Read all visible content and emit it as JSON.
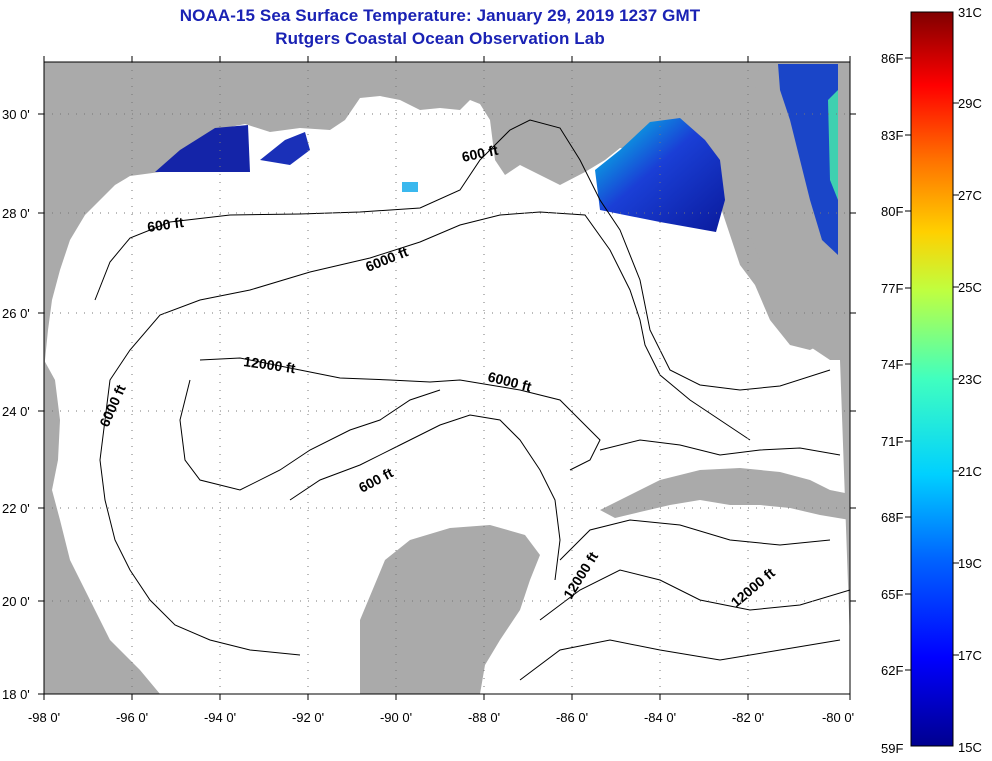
{
  "title": {
    "line1": "NOAA-15 Sea Surface Temperature:  January 29, 2019 1237 GMT",
    "line2": "Rutgers Coastal Ocean Observation Lab"
  },
  "axes": {
    "lat_labels": [
      "30 0'",
      "28 0'",
      "26 0'",
      "24 0'",
      "22 0'",
      "20 0'",
      "18 0'"
    ],
    "lon_labels": [
      "-98 0'",
      "-96 0'",
      "-94 0'",
      "-92 0'",
      "-90 0'",
      "-88 0'",
      "-86 0'",
      "-84 0'",
      "-82 0'",
      "-80 0'"
    ]
  },
  "contour_labels": [
    "600 ft",
    "600 ft",
    "6000 ft",
    "12000 ft",
    "6000 ft",
    "6000 ft",
    "600 ft",
    "12000 ft",
    "12000 ft"
  ],
  "colorbar": {
    "fahrenheit": [
      "86F",
      "83F",
      "80F",
      "77F",
      "74F",
      "71F",
      "68F",
      "65F",
      "62F",
      "59F"
    ],
    "celsius": [
      "31C",
      "29C",
      "27C",
      "25C",
      "23C",
      "21C",
      "19C",
      "17C",
      "15C"
    ]
  },
  "colors": {
    "title": "#1a22b4",
    "land": "#aaaaaa",
    "ocean": "#ffffff"
  }
}
